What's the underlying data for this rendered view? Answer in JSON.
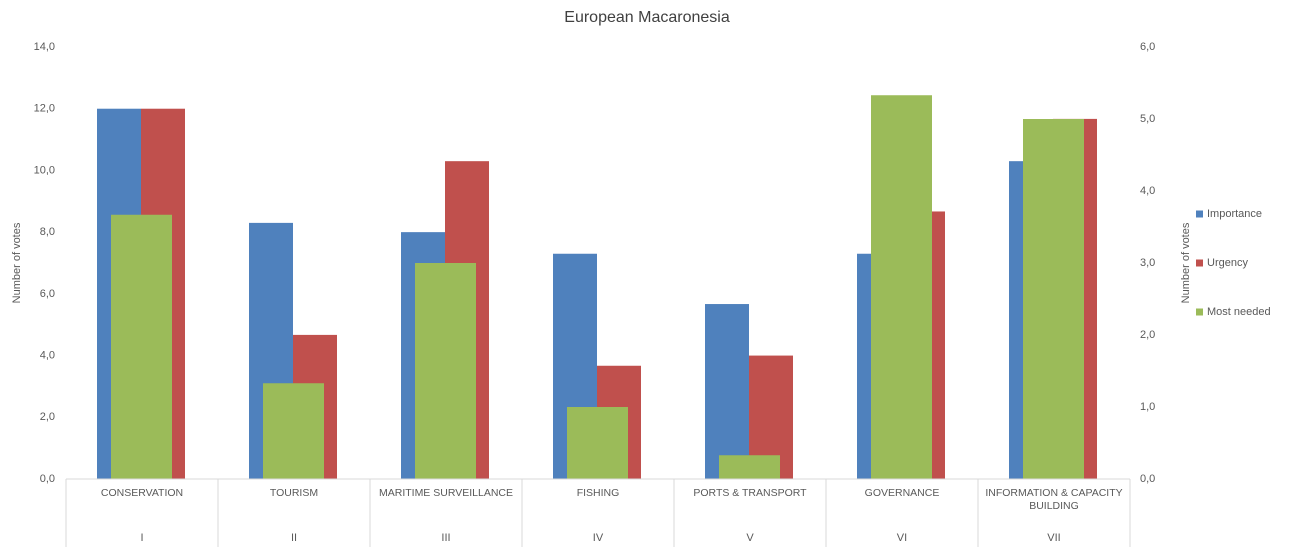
{
  "chart_data": {
    "type": "bar",
    "title": "European Macaronesia",
    "categories": [
      "CONSERVATION",
      "TOURISM",
      "MARITIME SURVEILLANCE",
      "FISHING",
      "PORTS & TRANSPORT",
      "GOVERNANCE",
      "INFORMATION & CAPACITY BUILDING"
    ],
    "category_numerals": [
      "I",
      "II",
      "III",
      "IV",
      "V",
      "VI",
      "VII"
    ],
    "y_label": "Number of votes",
    "y2_label": "Number of votes",
    "ylim": [
      0,
      14
    ],
    "yticks": [
      {
        "value": 0,
        "label": "0,0"
      },
      {
        "value": 2,
        "label": "2,0"
      },
      {
        "value": 4,
        "label": "4,0"
      },
      {
        "value": 6,
        "label": "6,0"
      },
      {
        "value": 8,
        "label": "8,0"
      },
      {
        "value": 10,
        "label": "10,0"
      },
      {
        "value": 12,
        "label": "12,0"
      },
      {
        "value": 14,
        "label": "14,0"
      }
    ],
    "y2lim": [
      0,
      6
    ],
    "y2ticks": [
      {
        "value": 0,
        "label": "0,0"
      },
      {
        "value": 1,
        "label": "1,0"
      },
      {
        "value": 2,
        "label": "2,0"
      },
      {
        "value": 3,
        "label": "3,0"
      },
      {
        "value": 4,
        "label": "4,0"
      },
      {
        "value": 5,
        "label": "5,0"
      },
      {
        "value": 6,
        "label": "6,0"
      }
    ],
    "series": [
      {
        "name": "Importance",
        "color": "#4f81bd",
        "values": [
          12,
          8.3,
          8,
          7.3,
          5.67,
          7.3,
          10.3
        ]
      },
      {
        "name": "Urgency",
        "color": "#c0504d",
        "values": [
          12,
          4.67,
          10.3,
          3.67,
          4,
          8.67,
          11.67
        ]
      },
      {
        "name": "Most needed",
        "color": "#9bbb59",
        "axis": "y2",
        "values": [
          3.67,
          1.33,
          3,
          1,
          0.33,
          5.33,
          5
        ]
      }
    ],
    "legend": "right"
  }
}
